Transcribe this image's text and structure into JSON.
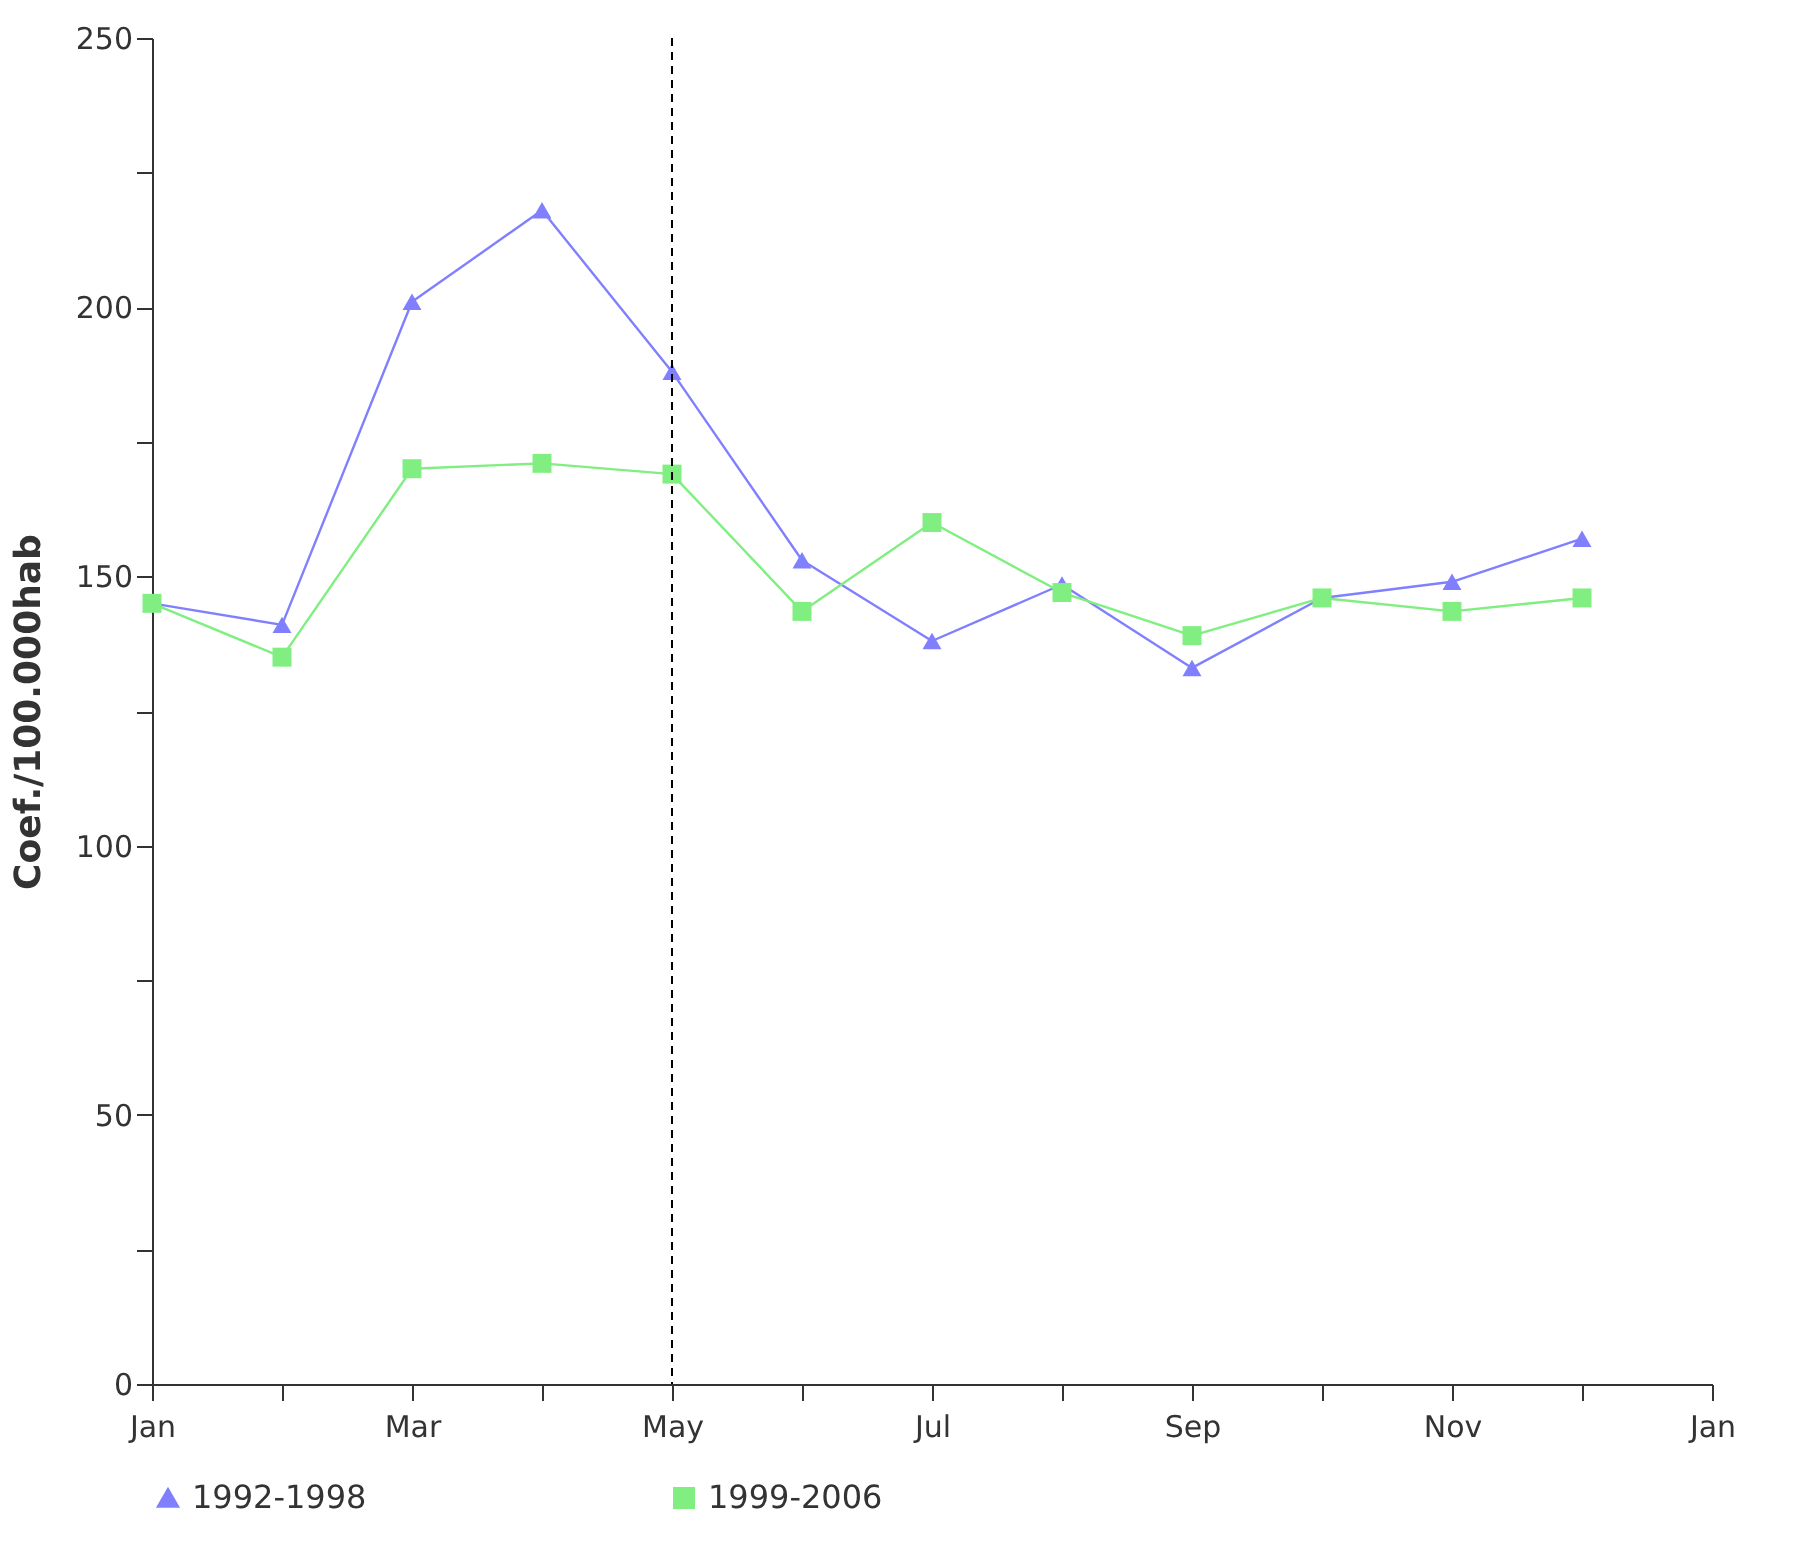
{
  "chart_data": {
    "type": "line",
    "ylabel": "Coef./100.000hab",
    "categories": [
      "Jan",
      null,
      "Mar",
      null,
      "May",
      null,
      "Jul",
      null,
      "Sep",
      null,
      "Nov",
      null,
      "Jan"
    ],
    "series": [
      {
        "name": "1992-1998",
        "color": "#8080ff",
        "marker": "triangle",
        "values": [
          145,
          141,
          201,
          218,
          188,
          153,
          138,
          148.5,
          133,
          146,
          149,
          157,
          null
        ]
      },
      {
        "name": "1999-2006",
        "color": "#80ee80",
        "marker": "square",
        "values": [
          145,
          135,
          170,
          171,
          169,
          143.5,
          160,
          147,
          139,
          146,
          143.5,
          146,
          null
        ]
      }
    ],
    "ylim": [
      0,
      250
    ],
    "yticks": [
      0,
      {
        "value": 25,
        "label": null
      },
      50,
      {
        "value": 75,
        "label": null
      },
      100,
      {
        "value": 125,
        "label": null
      },
      150,
      {
        "value": 175,
        "label": null
      },
      200,
      {
        "value": 225,
        "label": null
      },
      250
    ],
    "ref_lines": [
      {
        "axis": "x",
        "value": "May",
        "line_style": "dashed",
        "color": "#000000"
      }
    ],
    "grid": false,
    "legend": "bottom",
    "line_style": "solid"
  }
}
